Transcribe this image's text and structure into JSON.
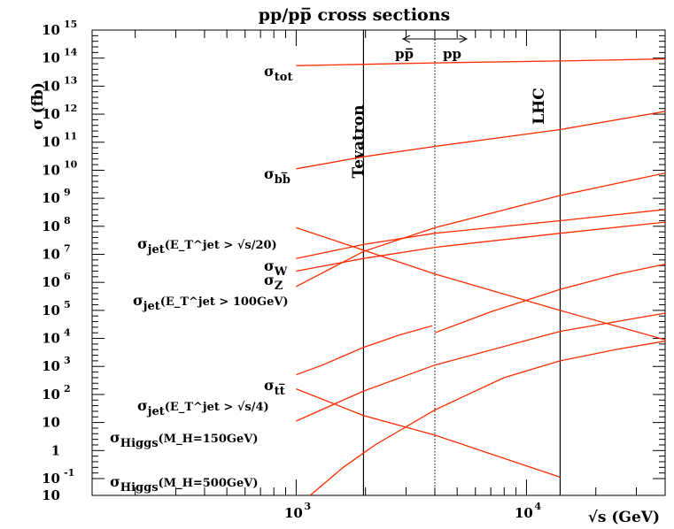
{
  "chart_data": {
    "type": "line",
    "title": "pp/pp̅ cross sections",
    "xlabel": "√s (GeV)",
    "ylabel": "σ (fb)",
    "xscale": "log",
    "yscale": "log",
    "xlim": [
      130,
      40000
    ],
    "ylim": [
      -1.6,
      15
    ],
    "y_ticks": [
      {
        "pos": 15,
        "base": "10",
        "exp": "15"
      },
      {
        "pos": 14,
        "base": "10",
        "exp": "14"
      },
      {
        "pos": 13,
        "base": "10",
        "exp": "13"
      },
      {
        "pos": 12,
        "base": "10",
        "exp": "12"
      },
      {
        "pos": 11,
        "base": "10",
        "exp": "11"
      },
      {
        "pos": 10,
        "base": "10",
        "exp": "10"
      },
      {
        "pos": 9,
        "base": "10",
        "exp": "9"
      },
      {
        "pos": 8,
        "base": "10",
        "exp": "8"
      },
      {
        "pos": 7,
        "base": "10",
        "exp": "7"
      },
      {
        "pos": 6,
        "base": "10",
        "exp": "6"
      },
      {
        "pos": 5,
        "base": "10",
        "exp": "5"
      },
      {
        "pos": 4,
        "base": "10",
        "exp": "4"
      },
      {
        "pos": 3,
        "base": "10",
        "exp": "3"
      },
      {
        "pos": 2,
        "base": "10",
        "exp": "2"
      },
      {
        "pos": 1,
        "base": "10",
        "exp": ""
      },
      {
        "pos": 0,
        "base": "1",
        "exp": ""
      },
      {
        "pos": -1,
        "base": "10",
        "exp": "-1"
      }
    ],
    "x_ticks": [
      {
        "value": 1000,
        "base": "10",
        "exp": "3"
      },
      {
        "value": 10000,
        "base": "10",
        "exp": "4"
      }
    ],
    "vertical_lines": [
      {
        "name": "Tevatron",
        "x": 1960,
        "style": "solid"
      },
      {
        "name": "LHC",
        "x": 14000,
        "style": "solid"
      },
      {
        "name": "",
        "x": 4000,
        "style": "dotted"
      }
    ],
    "region_labels": {
      "left": "pp̅",
      "right": "pp"
    },
    "series": [
      {
        "id": "tot",
        "label": "σ",
        "sub": "tot",
        "sup": "",
        "tail": "",
        "x": [
          1000,
          1960,
          4000,
          14000,
          40000
        ],
        "y": [
          13.73,
          13.78,
          13.83,
          13.9,
          13.97
        ]
      },
      {
        "id": "bb",
        "label": "σ",
        "sub": "bb̅",
        "sup": "",
        "tail": "",
        "x": [
          1000,
          1960,
          4000,
          14000,
          40000
        ],
        "y": [
          10.05,
          10.48,
          10.85,
          11.45,
          12.1
        ]
      },
      {
        "id": "jet20",
        "label": "σ",
        "sub": "jet",
        "sup": "",
        "tail": "(E_T^jet > √s/20)",
        "x": [
          1000,
          1960,
          4000,
          14000,
          40000
        ],
        "y": [
          7.95,
          7.15,
          6.3,
          5.0,
          3.95
        ]
      },
      {
        "id": "W",
        "label": "σ",
        "sub": "W",
        "sup": "",
        "tail": "",
        "x": [
          1000,
          1960,
          4000,
          14000,
          40000
        ],
        "y": [
          6.85,
          7.35,
          7.75,
          8.2,
          8.6
        ]
      },
      {
        "id": "Z",
        "label": "σ",
        "sub": "Z",
        "sup": "",
        "tail": "",
        "x": [
          1000,
          1960,
          4000,
          14000,
          40000
        ],
        "y": [
          6.4,
          6.85,
          7.25,
          7.75,
          8.15
        ]
      },
      {
        "id": "jet100",
        "label": "σ",
        "sub": "jet",
        "sup": "",
        "tail": "(E_T^jet > 100GeV)",
        "x": [
          1000,
          1960,
          4000,
          14000,
          40000
        ],
        "y": [
          5.85,
          7.1,
          7.95,
          9.1,
          9.9
        ]
      },
      {
        "id": "tt_pbar",
        "label": "σ",
        "sub": "tt̅",
        "sup": "",
        "tail": "",
        "x": [
          1000,
          1300,
          1960,
          2800,
          3900
        ],
        "y": [
          2.7,
          3.05,
          3.68,
          4.12,
          4.45
        ]
      },
      {
        "id": "tt_pp",
        "label": "",
        "sub": "",
        "sup": "",
        "tail": "",
        "x": [
          4000,
          7000,
          14000,
          25000,
          40000
        ],
        "y": [
          4.2,
          4.95,
          5.75,
          6.3,
          6.65
        ]
      },
      {
        "id": "jet4",
        "label": "σ",
        "sub": "jet",
        "sup": "",
        "tail": "(E_T^jet > √s/4)",
        "x": [
          1000,
          1960,
          4000,
          14000
        ],
        "y": [
          2.2,
          1.25,
          0.55,
          -0.95
        ]
      },
      {
        "id": "h150",
        "label": "σ",
        "sub": "Higgs",
        "sup": "",
        "tail": "(M_H=150GeV)",
        "x": [
          1000,
          1960,
          4000,
          14000,
          40000
        ],
        "y": [
          1.05,
          2.12,
          3.05,
          4.25,
          4.9
        ]
      },
      {
        "id": "h500",
        "label": "σ",
        "sub": "Higgs",
        "sup": "",
        "tail": "(M_H=500GeV)",
        "x": [
          1150,
          1600,
          2200,
          4000,
          8000,
          14000,
          25000,
          40000
        ],
        "y": [
          -1.6,
          -0.6,
          0.2,
          1.45,
          2.6,
          3.2,
          3.62,
          3.9
        ]
      }
    ]
  }
}
